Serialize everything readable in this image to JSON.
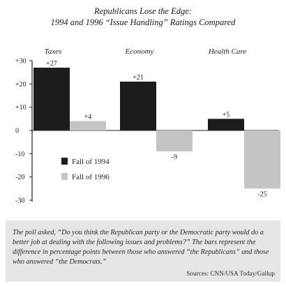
{
  "title_line1": "Republicans Lose the Edge:",
  "title_line2": "1994 and 1996 “Issue Handling” Ratings Compared",
  "chart_data": {
    "type": "bar",
    "categories": [
      "Taxes",
      "Economy",
      "Health Care"
    ],
    "series": [
      {
        "name": "Fall of 1994",
        "values": [
          27,
          21,
          5
        ],
        "color": "#1c1c1c"
      },
      {
        "name": "Fall of 1996",
        "values": [
          4,
          -9,
          -25
        ],
        "color": "#c4c4c4"
      }
    ],
    "data_labels": [
      [
        "+27",
        "+4"
      ],
      [
        "+21",
        "-9"
      ],
      [
        "+5",
        "-25"
      ]
    ],
    "ylim": [
      -30,
      30
    ],
    "yticks": [
      30,
      20,
      10,
      0,
      -10,
      -20,
      -30
    ],
    "ytick_labels": [
      "+30",
      "+20",
      "+10",
      "0",
      "-10",
      "-20",
      "-30"
    ],
    "grid": false,
    "legend_position": "lower-left",
    "category_labels_position": "top"
  },
  "note": "The poll asked, “Do you think the Republican party or the Democratic party would do a better job at dealing with the following issues and problems?” The bars represent the difference in percentage points between those who answered “the Republicans” and those who answered “the Democrats.”",
  "source": "Sources: CNN/USA Today/Gallup"
}
